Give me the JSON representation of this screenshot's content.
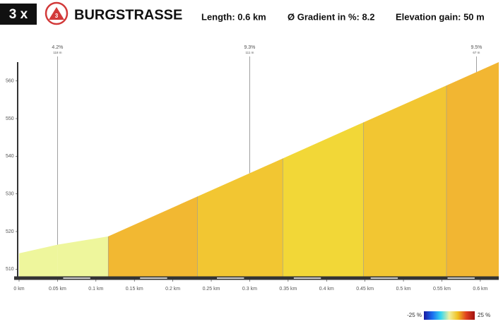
{
  "header": {
    "badge": "3 x",
    "icon_number": "3",
    "title": "BURGSTRASSE",
    "length": "Length: 0.6 km",
    "gradient": "Ø Gradient in %: 8.2",
    "elevation": "Elevation gain: 50 m"
  },
  "chart_data": {
    "type": "area",
    "x": [
      0,
      0.05,
      0.116,
      0.232,
      0.343,
      0.448,
      0.556,
      0.624
    ],
    "values": [
      514.2,
      516.5,
      518.7,
      529.3,
      539.4,
      549.0,
      558.8,
      565
    ],
    "segment_colors": [
      "#eef69c",
      "#eef69c",
      "#f2b832",
      "#f2c632",
      "#f2d737",
      "#f2c632",
      "#f2b632"
    ],
    "xlim": [
      0,
      0.624
    ],
    "ylim": [
      508,
      565
    ],
    "xticks": [
      {
        "value": 0,
        "label": "0 km"
      },
      {
        "value": 0.05,
        "label": "0.05 km"
      },
      {
        "value": 0.1,
        "label": "0.1 km"
      },
      {
        "value": 0.15,
        "label": "0.15 km"
      },
      {
        "value": 0.2,
        "label": "0.2 km"
      },
      {
        "value": 0.25,
        "label": "0.25 km"
      },
      {
        "value": 0.3,
        "label": "0.3 km"
      },
      {
        "value": 0.35,
        "label": "0.35 km"
      },
      {
        "value": 0.4,
        "label": "0.4 km"
      },
      {
        "value": 0.45,
        "label": "0.45 km"
      },
      {
        "value": 0.5,
        "label": "0.5 km"
      },
      {
        "value": 0.55,
        "label": "0.55 km"
      },
      {
        "value": 0.6,
        "label": "0.6 km"
      }
    ],
    "yticks": [
      510,
      520,
      530,
      540,
      550,
      560
    ],
    "annotations": [
      {
        "x": 0.05,
        "label": "4.2%",
        "sublabel": "118 m"
      },
      {
        "x": 0.3,
        "label": "9.3%",
        "sublabel": "111 m"
      },
      {
        "x": 0.595,
        "label": "9.5%",
        "sublabel": "67 m"
      }
    ],
    "color_scale": {
      "min_label": "-25 %",
      "max_label": "25 %",
      "colors": [
        "#1a1aa0",
        "#1a6cf0",
        "#36d6f0",
        "#f0f0a0",
        "#f0c020",
        "#e04020",
        "#a01010"
      ]
    }
  }
}
